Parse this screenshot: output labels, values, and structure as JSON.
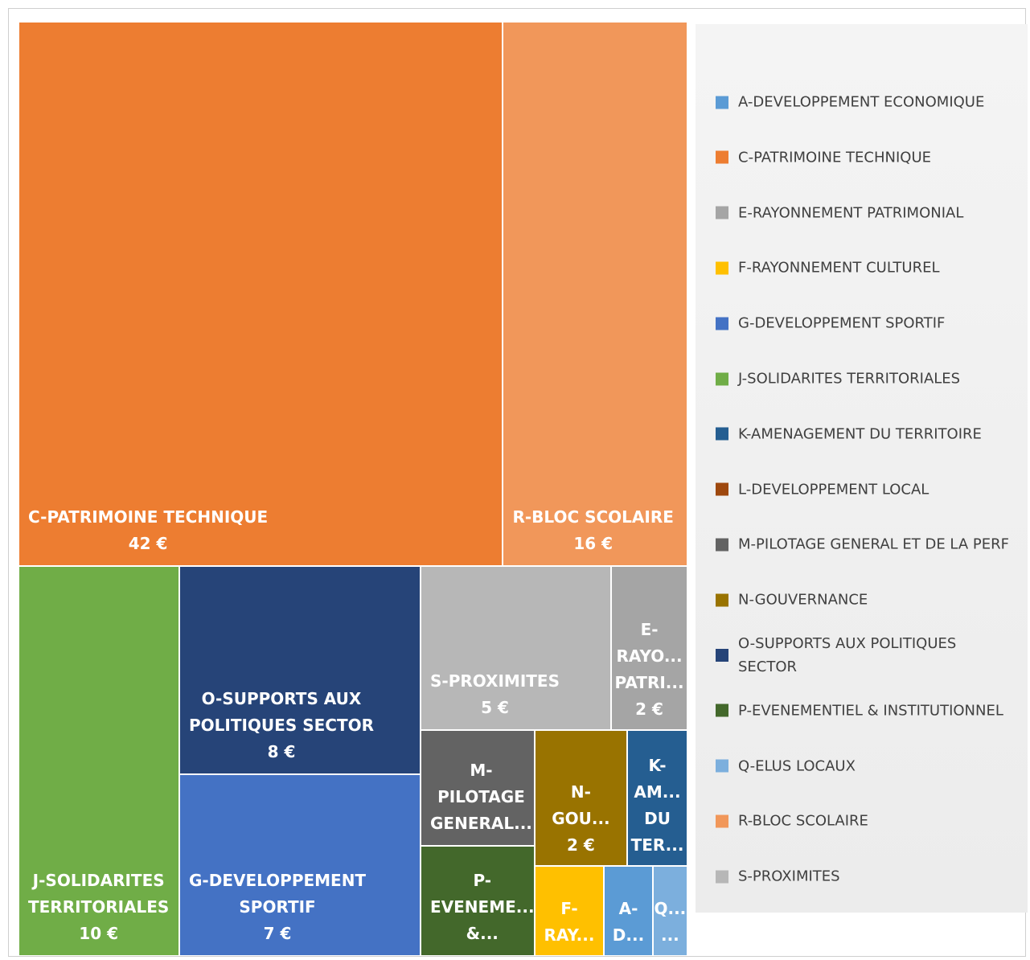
{
  "chart_data": {
    "type": "treemap",
    "categories": [
      "A-DEVELOPPEMENT ECONOMIQUE",
      "C-PATRIMOINE TECHNIQUE",
      "E-RAYONNEMENT PATRIMONIAL",
      "F-RAYONNEMENT CULTUREL",
      "G-DEVELOPPEMENT SPORTIF",
      "J-SOLIDARITES TERRITORIALES",
      "K-AMENAGEMENT DU TERRITOIRE",
      "L-DEVELOPPEMENT LOCAL",
      "M-PILOTAGE GENERAL ET DE LA PERF",
      "N-GOUVERNANCE",
      "O-SUPPORTS AUX POLITIQUES SECTOR",
      "P-EVENEMENTIEL & INSTITUTIONNEL",
      "Q-ELUS LOCAUX",
      "R-BLOC SCOLAIRE",
      "S-PROXIMITES"
    ],
    "values": [
      0.7,
      42,
      2,
      1,
      7,
      10,
      1.3,
      null,
      2.1,
      2,
      8,
      2,
      0.5,
      16,
      5
    ],
    "value_labels": [
      null,
      "42 €",
      "2 €",
      null,
      "7 €",
      "10 €",
      null,
      null,
      null,
      "2 €",
      "8 €",
      null,
      null,
      "16 €",
      "5 €"
    ],
    "tile_labels": [
      [
        "A-",
        "D..."
      ],
      [
        "C-PATRIMOINE TECHNIQUE"
      ],
      [
        "E-",
        "RAYO...",
        "PATRI..."
      ],
      [
        "F-",
        "RAY..."
      ],
      [
        "G-DEVELOPPEMENT",
        "SPORTIF"
      ],
      [
        "J-SOLIDARITES",
        "TERRITORIALES"
      ],
      [
        "K-",
        "AM...",
        "DU",
        "TER..."
      ],
      null,
      [
        "M-",
        "PILOTAGE",
        "GENERAL..."
      ],
      [
        "N-",
        "GOU..."
      ],
      [
        "O-SUPPORTS AUX",
        "POLITIQUES SECTOR"
      ],
      [
        "P-",
        "EVENEME...",
        "&..."
      ],
      [
        "Q...",
        "..."
      ],
      [
        "R-BLOC SCOLAIRE"
      ],
      [
        "S-PROXIMITES"
      ]
    ],
    "colors": [
      "#5b9bd5",
      "#ed7d31",
      "#a5a5a5",
      "#ffc000",
      "#4472c4",
      "#70ad47",
      "#255e91",
      "#9e480e",
      "#636363",
      "#997300",
      "#264478",
      "#43682b",
      "#7cafdd",
      "#f1975a",
      "#b7b7b7"
    ],
    "legend": "right"
  }
}
